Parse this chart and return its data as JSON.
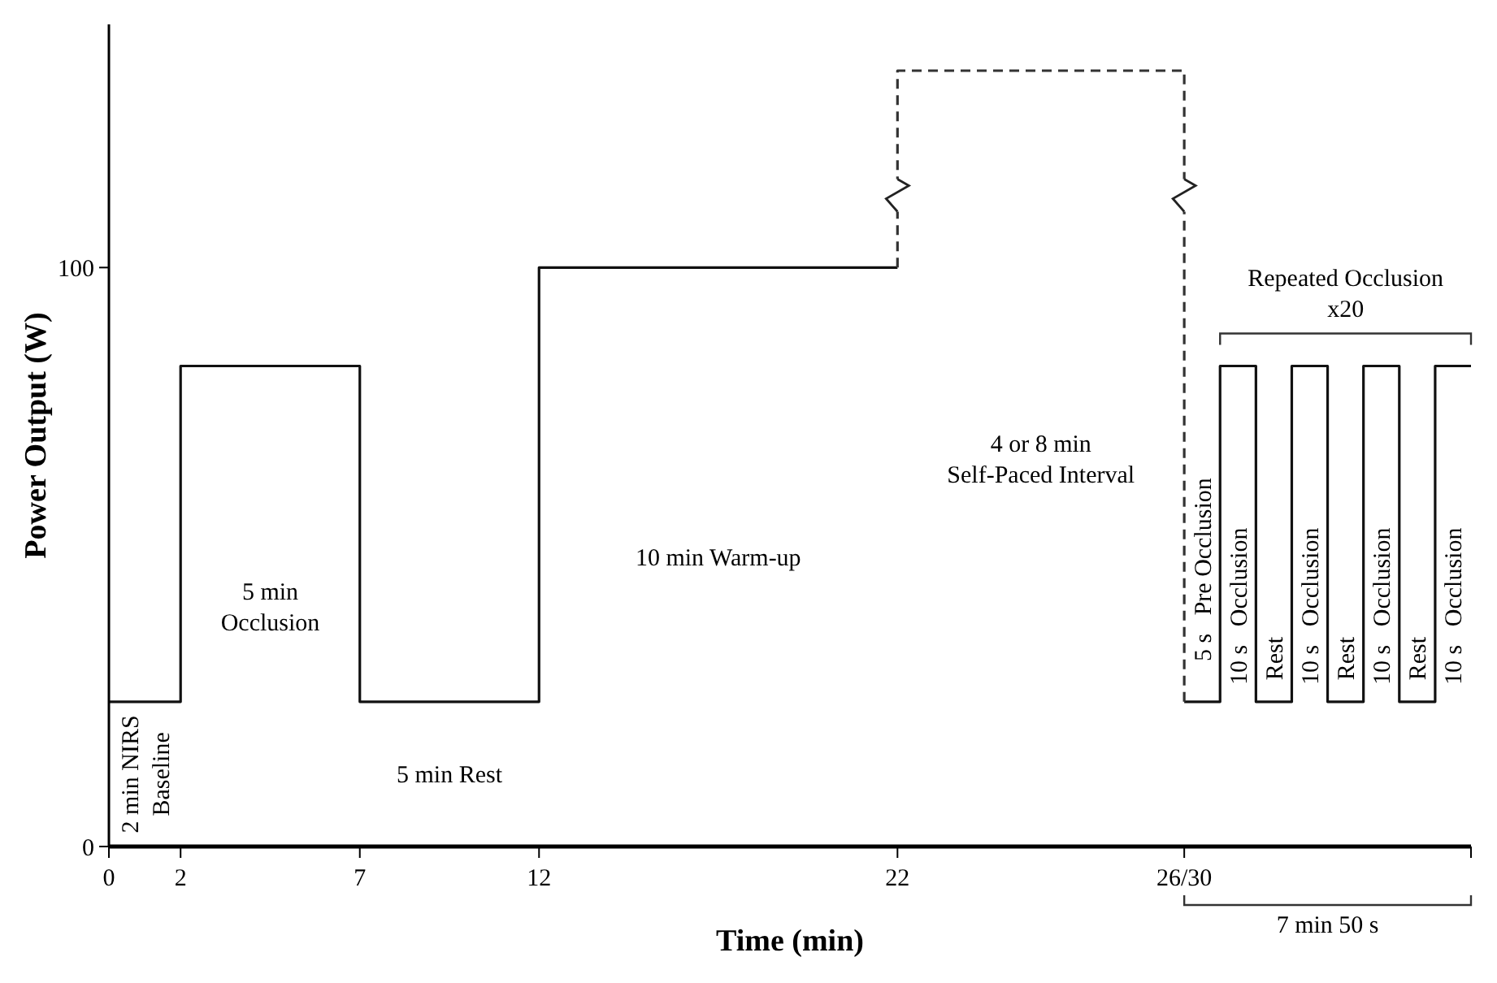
{
  "chart_data": {
    "type": "step",
    "xlabel": "Time (min)",
    "ylabel": "Power Output (W)",
    "xlim": [
      0,
      38
    ],
    "ylim": [
      0,
      142
    ],
    "xticks": [
      0,
      2,
      7,
      12,
      22,
      {
        "value": 30,
        "label": "26/30"
      },
      {
        "value": 38,
        "label": null
      }
    ],
    "yticks": [
      0,
      100
    ],
    "grid": false,
    "series": [
      {
        "color": "#111111",
        "x": [
          0,
          2,
          7,
          12,
          22,
          30,
          31,
          32,
          33,
          34,
          35,
          36,
          37,
          38
        ],
        "values": [
          25,
          83,
          25,
          100,
          null,
          25,
          83,
          25,
          83,
          25,
          83,
          25,
          83,
          83
        ]
      },
      {
        "type": "line",
        "color": "#333333",
        "line_style": "dashed",
        "x": [
          22,
          22,
          30,
          30
        ],
        "values": [
          100,
          134,
          134,
          25
        ]
      }
    ],
    "annotations": [
      "2 min NIRS\nBaseline",
      "5 min\nOcclusion",
      "5 min Rest",
      "10 min Warm-up",
      "4 or 8 min\nSelf-Paced Interval",
      "5 s   Pre Occlusion",
      "10 s   Occlusion",
      "Rest",
      "10 s   Occlusion",
      "Rest",
      "10 s   Occlusion",
      "Rest",
      "10 s   Occlusion",
      "Repeated Occlusion\nx20",
      "7 min 50 s"
    ]
  }
}
